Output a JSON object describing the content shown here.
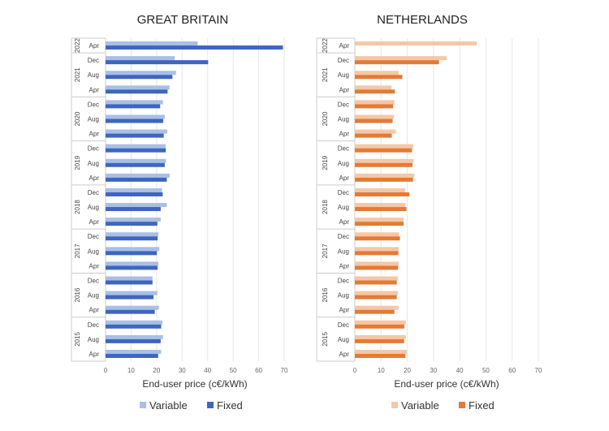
{
  "chart_data": [
    {
      "type": "bar",
      "orientation": "horizontal",
      "title": "GREAT BRITAIN",
      "xlabel": "End-user price (c€/kWh)",
      "xlim": [
        0,
        70
      ],
      "xticks": [
        "0",
        "10",
        "20",
        "30",
        "40",
        "50",
        "60",
        "70"
      ],
      "grid": true,
      "legend": "bottom",
      "years": [
        {
          "label": "2022",
          "count": 1
        },
        {
          "label": "2021",
          "count": 3
        },
        {
          "label": "2020",
          "count": 3
        },
        {
          "label": "2019",
          "count": 3
        },
        {
          "label": "2018",
          "count": 3
        },
        {
          "label": "2017",
          "count": 3
        },
        {
          "label": "2016",
          "count": 3
        },
        {
          "label": "2015",
          "count": 3
        }
      ],
      "categories": [
        "Apr",
        "Dec",
        "Aug",
        "Apr",
        "Dec",
        "Aug",
        "Apr",
        "Dec",
        "Aug",
        "Apr",
        "Dec",
        "Aug",
        "Apr",
        "Dec",
        "Aug",
        "Apr",
        "Dec",
        "Aug",
        "Apr",
        "Dec",
        "Aug",
        "Apr"
      ],
      "series": [
        {
          "name": "Variable",
          "color": "#a9bfe6",
          "values": [
            36.1,
            27.1,
            27.6,
            25.1,
            22.5,
            23.2,
            24.2,
            23.5,
            23.7,
            25.1,
            22.1,
            24.0,
            21.6,
            20.7,
            21.1,
            20.7,
            18.4,
            20.3,
            20.9,
            22.3,
            22.5,
            21.8
          ]
        },
        {
          "name": "Fixed",
          "color": "#3e66bf",
          "values": [
            69.5,
            40.2,
            26.2,
            24.3,
            21.4,
            22.6,
            22.8,
            23.6,
            23.2,
            24.0,
            22.4,
            21.6,
            20.3,
            20.4,
            20.1,
            20.4,
            18.4,
            18.8,
            19.3,
            21.8,
            21.6,
            20.6
          ]
        }
      ]
    },
    {
      "type": "bar",
      "orientation": "horizontal",
      "title": "NETHERLANDS",
      "xlabel": "End-user price (c€/kWh)",
      "xlim": [
        0,
        70
      ],
      "xticks": [
        "0",
        "10",
        "20",
        "30",
        "40",
        "50",
        "60",
        "70"
      ],
      "grid": true,
      "legend": "bottom",
      "years": [
        {
          "label": "2022",
          "count": 1
        },
        {
          "label": "2021",
          "count": 3
        },
        {
          "label": "2020",
          "count": 3
        },
        {
          "label": "2019",
          "count": 3
        },
        {
          "label": "2018",
          "count": 3
        },
        {
          "label": "2017",
          "count": 3
        },
        {
          "label": "2016",
          "count": 3
        },
        {
          "label": "2015",
          "count": 3
        }
      ],
      "categories": [
        "Apr",
        "Dec",
        "Aug",
        "Apr",
        "Dec",
        "Aug",
        "Apr",
        "Dec",
        "Aug",
        "Apr",
        "Dec",
        "Aug",
        "Apr",
        "Dec",
        "Aug",
        "Apr",
        "Dec",
        "Aug",
        "Apr",
        "Dec",
        "Aug",
        "Apr"
      ],
      "series": [
        {
          "name": "Variable",
          "color": "#f6c7a6",
          "values": [
            46.5,
            35.0,
            16.7,
            14.0,
            15.1,
            14.9,
            15.6,
            22.3,
            22.4,
            22.7,
            19.2,
            19.3,
            18.6,
            16.8,
            16.8,
            16.7,
            16.5,
            16.5,
            16.7,
            19.5,
            19.5,
            19.8
          ]
        },
        {
          "name": "Fixed",
          "color": "#e37a36",
          "values": [
            null,
            32.1,
            18.1,
            15.3,
            14.6,
            14.4,
            14.1,
            21.8,
            22.0,
            22.2,
            20.8,
            19.7,
            18.6,
            17.2,
            16.6,
            16.5,
            16.0,
            16.0,
            15.1,
            18.9,
            18.8,
            19.3
          ]
        }
      ]
    }
  ]
}
